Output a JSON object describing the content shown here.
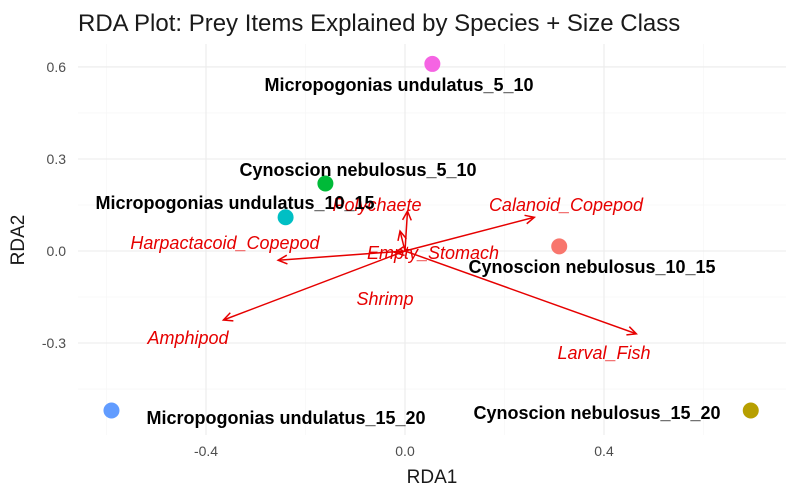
{
  "chart_data": {
    "type": "scatter",
    "title": "RDA Plot: Prey Items Explained by Species + Size Class",
    "xlabel": "RDA1",
    "ylabel": "RDA2",
    "xlim": [
      -0.6,
      0.7
    ],
    "ylim": [
      -0.5,
      0.66
    ],
    "x_ticks": [
      -0.4,
      0.0,
      0.4
    ],
    "x_tick_labels": [
      "-0.4",
      "0.0",
      "0.4"
    ],
    "y_ticks": [
      -0.3,
      0.0,
      0.3,
      0.6
    ],
    "y_tick_labels": [
      "-0.3",
      "0.0",
      "0.3",
      "0.6"
    ],
    "grid": true,
    "legend": "none",
    "points": [
      {
        "label": "Micropogonias undulatus_5_10",
        "x": 0.055,
        "y": 0.61,
        "color": "#F564E3"
      },
      {
        "label": "Cynoscion nebulosus_5_10",
        "x": -0.16,
        "y": 0.22,
        "color": "#00BA38"
      },
      {
        "label": "Micropogonias undulatus_10_15",
        "x": -0.24,
        "y": 0.11,
        "color": "#00BFC4"
      },
      {
        "label": "Cynoscion nebulosus_10_15",
        "x": 0.31,
        "y": 0.015,
        "color": "#F8766D"
      },
      {
        "label": "Micropogonias undulatus_15_20",
        "x": -0.59,
        "y": -0.52,
        "color": "#619CFF"
      },
      {
        "label": "Cynoscion nebulosus_15_20",
        "x": 0.695,
        "y": -0.52,
        "color": "#B79F00"
      }
    ],
    "vectors": [
      {
        "label": "Polychaete",
        "x": 0.005,
        "y": 0.13
      },
      {
        "label": "Calanoid_Copepod",
        "x": 0.26,
        "y": 0.11
      },
      {
        "label": "Harpactacoid_Copepod",
        "x": -0.255,
        "y": -0.03
      },
      {
        "label": "Empty_Stomach",
        "x": -0.01,
        "y": 0.065
      },
      {
        "label": "Shrimp",
        "x": -0.02,
        "y": -0.005
      },
      {
        "label": "Amphipod",
        "x": -0.365,
        "y": -0.225
      },
      {
        "label": "Larval_Fish",
        "x": 0.465,
        "y": -0.27
      }
    ],
    "vector_color": "#e60000"
  }
}
